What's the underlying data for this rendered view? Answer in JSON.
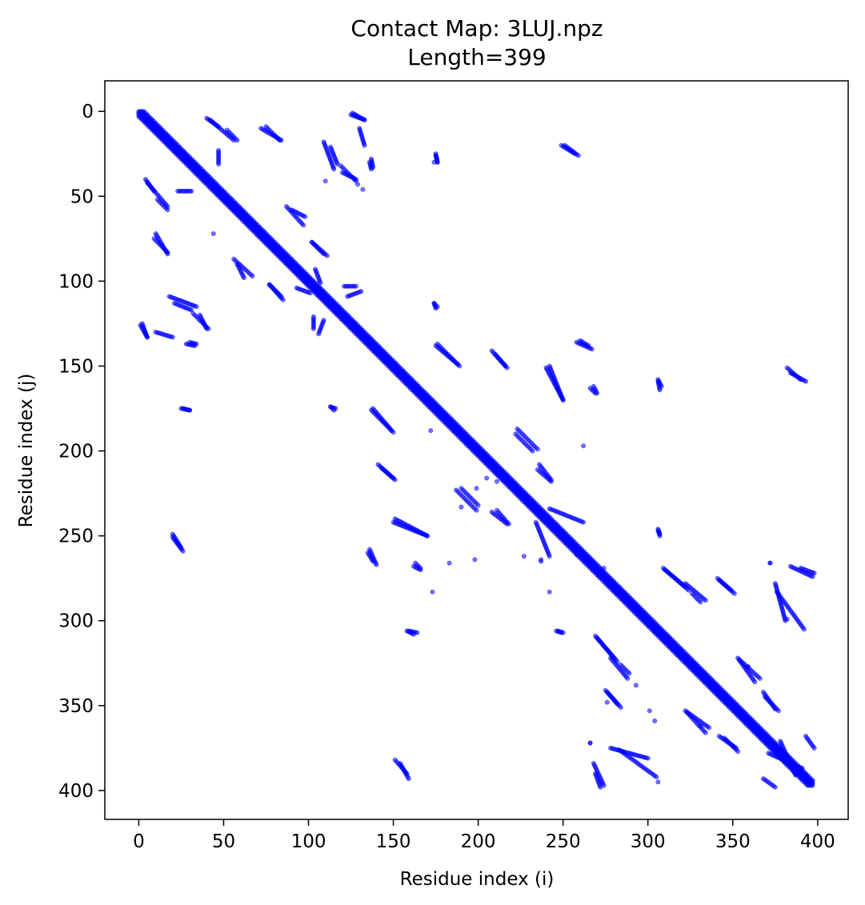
{
  "chart_data": {
    "type": "scatter",
    "title": "Contact Map: 3LUJ.npz",
    "subtitle": "Length=399",
    "xlabel": "Residue index (i)",
    "ylabel": "Residue index (j)",
    "xlim": [
      -20,
      418
    ],
    "ylim": [
      -18,
      417
    ],
    "y_inverted": true,
    "xticks": [
      "0",
      "50",
      "100",
      "150",
      "200",
      "250",
      "300",
      "350",
      "400"
    ],
    "yticks": [
      "0",
      "50",
      "100",
      "150",
      "200",
      "250",
      "300",
      "350",
      "400"
    ],
    "grid": false,
    "marker_color": "#0000ff",
    "marker_opacity": 0.55,
    "diagonal": {
      "start": 0,
      "end": 397,
      "width": 3
    },
    "contact_segments": [
      [
        40,
        4,
        47,
        9
      ],
      [
        52,
        11,
        58,
        17
      ],
      [
        72,
        10,
        84,
        17
      ],
      [
        109,
        18,
        115,
        34
      ],
      [
        120,
        36,
        128,
        40
      ],
      [
        126,
        1,
        133,
        5
      ],
      [
        136,
        30,
        137,
        34
      ],
      [
        175,
        26,
        176,
        30
      ],
      [
        249,
        20,
        257,
        25
      ],
      [
        5,
        42,
        17,
        56
      ],
      [
        23,
        47,
        31,
        47
      ],
      [
        90,
        58,
        98,
        62
      ],
      [
        102,
        77,
        111,
        85
      ],
      [
        9,
        75,
        17,
        83
      ],
      [
        56,
        87,
        67,
        97
      ],
      [
        77,
        102,
        84,
        109
      ],
      [
        93,
        104,
        101,
        107
      ],
      [
        121,
        103,
        128,
        103
      ],
      [
        2,
        125,
        5,
        133
      ],
      [
        21,
        113,
        31,
        117
      ],
      [
        32,
        119,
        41,
        128
      ],
      [
        28,
        137,
        33,
        138
      ],
      [
        174,
        113,
        175,
        116
      ],
      [
        109,
        123,
        106,
        131
      ],
      [
        175,
        138,
        188,
        149
      ],
      [
        210,
        143,
        217,
        151
      ],
      [
        260,
        135,
        265,
        138
      ],
      [
        240,
        151,
        250,
        170
      ],
      [
        266,
        163,
        269,
        166
      ],
      [
        306,
        159,
        307,
        164
      ],
      [
        384,
        154,
        393,
        159
      ],
      [
        25,
        175,
        30,
        176
      ],
      [
        113,
        174,
        115,
        176
      ],
      [
        137,
        176,
        150,
        189
      ],
      [
        141,
        208,
        150,
        216
      ],
      [
        187,
        223,
        199,
        235
      ],
      [
        208,
        236,
        217,
        243
      ],
      [
        222,
        190,
        232,
        200
      ],
      [
        235,
        211,
        243,
        218
      ],
      [
        242,
        234,
        262,
        242
      ],
      [
        20,
        251,
        26,
        259
      ],
      [
        136,
        258,
        140,
        267
      ],
      [
        150,
        242,
        170,
        250
      ],
      [
        162,
        268,
        166,
        270
      ],
      [
        306,
        247,
        307,
        250
      ],
      [
        310,
        270,
        322,
        280
      ],
      [
        322,
        278,
        334,
        288
      ],
      [
        342,
        276,
        351,
        284
      ],
      [
        384,
        268,
        397,
        274
      ],
      [
        376,
        283,
        392,
        305
      ],
      [
        158,
        306,
        162,
        308
      ],
      [
        246,
        306,
        249,
        307
      ],
      [
        269,
        309,
        282,
        324
      ],
      [
        284,
        326,
        289,
        331
      ],
      [
        354,
        323,
        366,
        334
      ],
      [
        275,
        341,
        282,
        349
      ],
      [
        322,
        353,
        336,
        363
      ],
      [
        345,
        369,
        353,
        377
      ],
      [
        368,
        342,
        375,
        352
      ],
      [
        266,
        372,
        266,
        372
      ],
      [
        151,
        382,
        158,
        390
      ],
      [
        269,
        390,
        272,
        398
      ],
      [
        278,
        375,
        300,
        381
      ],
      [
        371,
        378,
        391,
        387
      ],
      [
        368,
        393,
        375,
        398
      ],
      [
        130,
        10,
        133,
        20
      ]
    ],
    "isolated_points": [
      [
        174,
        30
      ],
      [
        44,
        72
      ],
      [
        54,
        55
      ],
      [
        132,
        46
      ],
      [
        129,
        43
      ],
      [
        110,
        41
      ],
      [
        237,
        265
      ],
      [
        172,
        188
      ],
      [
        173,
        283
      ],
      [
        237,
        264
      ],
      [
        276,
        348
      ],
      [
        340,
        339
      ],
      [
        227,
        262
      ],
      [
        183,
        266
      ],
      [
        198,
        264
      ],
      [
        205,
        216
      ],
      [
        199,
        222
      ],
      [
        190,
        233
      ],
      [
        211,
        218
      ],
      [
        274,
        269
      ],
      [
        331,
        362
      ],
      [
        359,
        327
      ],
      [
        382,
        299
      ],
      [
        306,
        395
      ],
      [
        304,
        359
      ],
      [
        258,
        261
      ],
      [
        293,
        338
      ],
      [
        301,
        353
      ],
      [
        262,
        197
      ],
      [
        242,
        283
      ]
    ]
  }
}
